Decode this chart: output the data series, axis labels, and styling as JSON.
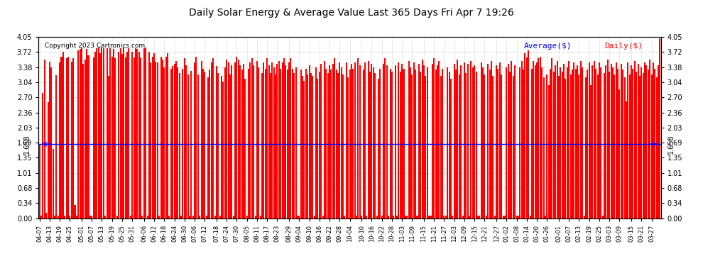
{
  "title": "Daily Solar Energy & Average Value Last 365 Days Fri Apr 7 19:26",
  "copyright": "Copyright 2023 Cartronics.com",
  "legend_avg": "Average($)",
  "legend_daily": "Daily($)",
  "average_value": 1.658,
  "average_label": "1.658",
  "bar_color": "#ff0000",
  "avg_line_color": "#0000ff",
  "background_color": "#ffffff",
  "plot_bg_color": "#ffffff",
  "grid_color": "#bbbbbb",
  "ylim": [
    0.0,
    4.05
  ],
  "yticks": [
    0.0,
    0.34,
    0.68,
    1.01,
    1.35,
    1.69,
    2.03,
    2.36,
    2.7,
    3.04,
    3.38,
    3.72,
    4.05
  ],
  "x_labels": [
    "04-07",
    "04-13",
    "04-19",
    "04-25",
    "05-01",
    "05-07",
    "05-13",
    "05-19",
    "05-25",
    "05-31",
    "06-06",
    "06-12",
    "06-18",
    "06-24",
    "06-30",
    "07-06",
    "07-12",
    "07-18",
    "07-24",
    "07-30",
    "08-05",
    "08-11",
    "08-17",
    "08-23",
    "08-29",
    "09-04",
    "09-10",
    "09-16",
    "09-22",
    "09-28",
    "10-04",
    "10-10",
    "10-16",
    "10-22",
    "10-28",
    "11-03",
    "11-09",
    "11-15",
    "11-21",
    "11-27",
    "12-03",
    "12-09",
    "12-15",
    "12-21",
    "12-27",
    "01-02",
    "01-08",
    "01-14",
    "01-20",
    "01-26",
    "02-01",
    "02-07",
    "02-13",
    "02-19",
    "02-25",
    "03-03",
    "03-09",
    "03-15",
    "03-21",
    "03-27",
    "04-02"
  ],
  "bar_values": [
    1.65,
    0.05,
    2.8,
    3.55,
    0.12,
    2.6,
    3.5,
    3.38,
    1.55,
    0.05,
    3.2,
    0.05,
    3.48,
    3.62,
    3.72,
    0.05,
    3.58,
    3.62,
    0.05,
    3.5,
    3.58,
    0.3,
    0.05,
    3.75,
    3.78,
    3.82,
    3.45,
    3.55,
    3.78,
    3.65,
    0.05,
    0.05,
    3.6,
    3.72,
    3.8,
    3.82,
    3.7,
    3.82,
    3.8,
    0.05,
    3.8,
    3.18,
    3.8,
    3.62,
    3.78,
    3.58,
    0.05,
    3.72,
    3.8,
    3.68,
    3.82,
    3.6,
    3.72,
    3.8,
    0.05,
    3.72,
    3.6,
    3.8,
    3.78,
    3.72,
    3.6,
    0.05,
    3.8,
    3.82,
    0.05,
    3.72,
    3.48,
    3.62,
    3.7,
    3.5,
    3.48,
    0.05,
    3.62,
    3.55,
    3.38,
    3.62,
    3.7,
    0.05,
    3.35,
    3.4,
    3.45,
    3.52,
    3.38,
    3.25,
    0.05,
    3.35,
    3.58,
    3.42,
    3.22,
    0.05,
    3.3,
    0.05,
    3.48,
    3.62,
    3.22,
    0.05,
    3.52,
    3.35,
    3.28,
    0.05,
    3.15,
    3.32,
    3.48,
    3.58,
    0.05,
    3.4,
    3.25,
    0.05,
    3.18,
    3.05,
    3.38,
    3.55,
    3.48,
    3.22,
    3.42,
    0.05,
    3.48,
    3.62,
    3.55,
    3.42,
    3.32,
    3.45,
    3.12,
    0.05,
    3.35,
    3.48,
    3.58,
    3.42,
    0.05,
    3.52,
    3.38,
    0.05,
    3.25,
    3.48,
    3.35,
    3.58,
    3.42,
    3.25,
    3.48,
    3.38,
    3.22,
    3.45,
    3.52,
    3.35,
    3.48,
    3.58,
    3.42,
    3.32,
    3.48,
    3.58,
    3.35,
    3.25,
    3.38,
    0.05,
    0.05,
    3.32,
    3.18,
    3.08,
    3.35,
    3.22,
    3.42,
    3.25,
    3.18,
    0.05,
    3.38,
    3.12,
    3.28,
    3.45,
    0.05,
    3.52,
    3.35,
    3.25,
    3.42,
    3.32,
    3.45,
    3.58,
    3.32,
    3.25,
    3.48,
    3.38,
    3.22,
    0.05,
    3.48,
    3.15,
    3.32,
    3.45,
    3.35,
    3.48,
    0.05,
    3.58,
    3.42,
    0.05,
    3.32,
    3.48,
    0.05,
    3.52,
    3.28,
    3.45,
    3.38,
    3.25,
    0.05,
    3.12,
    3.35,
    0.05,
    3.45,
    3.58,
    3.42,
    0.05,
    3.35,
    3.28,
    0.05,
    3.42,
    0.05,
    3.48,
    3.28,
    3.45,
    3.35,
    0.05,
    0.05,
    3.52,
    3.38,
    3.22,
    3.48,
    3.32,
    0.05,
    3.45,
    3.28,
    3.55,
    3.42,
    3.18,
    3.38,
    0.05,
    0.05,
    3.45,
    3.58,
    3.32,
    3.42,
    3.52,
    3.18,
    3.35,
    0.05,
    0.05,
    3.38,
    3.28,
    3.12,
    0.05,
    3.45,
    3.32,
    3.55,
    3.22,
    3.42,
    0.05,
    3.48,
    3.25,
    3.45,
    0.05,
    3.52,
    3.38,
    3.42,
    3.28,
    0.05,
    0.05,
    3.48,
    3.38,
    3.22,
    0.05,
    3.45,
    3.32,
    3.52,
    3.18,
    0.05,
    3.42,
    3.35,
    3.48,
    3.22,
    0.05,
    0.05,
    3.38,
    3.45,
    3.28,
    3.52,
    3.18,
    3.42,
    0.05,
    0.05,
    3.38,
    3.52,
    3.32,
    3.7,
    3.6,
    3.75,
    0.05,
    3.35,
    3.52,
    3.42,
    3.48,
    3.58,
    3.62,
    3.38,
    3.15,
    0.05,
    3.22,
    2.98,
    3.35,
    3.58,
    3.28,
    3.42,
    3.52,
    3.18,
    3.38,
    3.28,
    3.45,
    3.12,
    3.38,
    3.52,
    3.22,
    3.32,
    3.48,
    3.35,
    3.42,
    3.22,
    3.52,
    3.38,
    0.05,
    3.15,
    3.32,
    3.48,
    2.98,
    3.42,
    3.52,
    3.35,
    3.22,
    3.48,
    3.38,
    0.05,
    3.25,
    3.42,
    3.55,
    3.28,
    3.45,
    3.38,
    3.22,
    3.48,
    3.35,
    2.88,
    3.45,
    3.32,
    3.15,
    2.62,
    3.48,
    3.22,
    3.42,
    3.35,
    3.52,
    3.28,
    3.45,
    3.18,
    3.38,
    3.25,
    3.48,
    3.42,
    3.32,
    3.55,
    3.22,
    3.48,
    3.35,
    3.15,
    3.42,
    4.02
  ]
}
